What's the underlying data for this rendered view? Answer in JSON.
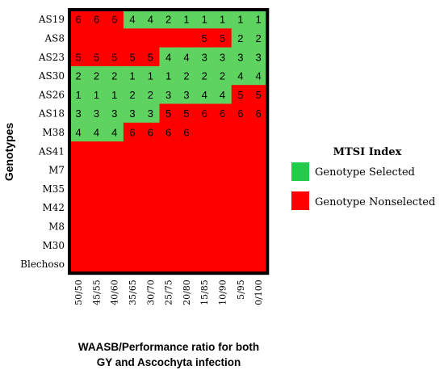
{
  "chart_data": {
    "type": "heatmap",
    "title": "",
    "ylabel": "Genotypes",
    "xlabel_lines": [
      "WAASB/Performance ratio for both",
      "GY and Ascochyta infection"
    ],
    "x": [
      "50/50",
      "45/55",
      "40/60",
      "35/65",
      "30/70",
      "25/75",
      "20/80",
      "15/85",
      "10/90",
      "5/95",
      "0/100"
    ],
    "y": [
      "AS19",
      "AS8",
      "AS23",
      "AS30",
      "AS26",
      "AS18",
      "M38",
      "AS41",
      "M7",
      "M35",
      "M42",
      "M8",
      "M30",
      "Blechoso"
    ],
    "ranks": [
      [
        6,
        6,
        6,
        4,
        4,
        2,
        1,
        1,
        1,
        1,
        1
      ],
      [
        null,
        null,
        null,
        null,
        null,
        null,
        null,
        5,
        5,
        2,
        2
      ],
      [
        5,
        5,
        5,
        5,
        5,
        4,
        4,
        3,
        3,
        3,
        3
      ],
      [
        2,
        2,
        2,
        1,
        1,
        1,
        2,
        2,
        2,
        4,
        4
      ],
      [
        1,
        1,
        1,
        2,
        2,
        3,
        3,
        4,
        4,
        5,
        5
      ],
      [
        3,
        3,
        3,
        3,
        3,
        5,
        5,
        6,
        6,
        6,
        6
      ],
      [
        4,
        4,
        4,
        6,
        6,
        6,
        6,
        null,
        null,
        null,
        null
      ],
      [
        null,
        null,
        null,
        null,
        null,
        null,
        null,
        null,
        null,
        null,
        null
      ],
      [
        null,
        null,
        null,
        null,
        null,
        null,
        null,
        null,
        null,
        null,
        null
      ],
      [
        null,
        null,
        null,
        null,
        null,
        null,
        null,
        null,
        null,
        null,
        null
      ],
      [
        null,
        null,
        null,
        null,
        null,
        null,
        null,
        null,
        null,
        null,
        null
      ],
      [
        null,
        null,
        null,
        null,
        null,
        null,
        null,
        null,
        null,
        null,
        null
      ],
      [
        null,
        null,
        null,
        null,
        null,
        null,
        null,
        null,
        null,
        null,
        null
      ],
      [
        null,
        null,
        null,
        null,
        null,
        null,
        null,
        null,
        null,
        null,
        null
      ]
    ],
    "selected": [
      [
        0,
        0,
        0,
        1,
        1,
        1,
        1,
        1,
        1,
        1,
        1
      ],
      [
        0,
        0,
        0,
        0,
        0,
        0,
        0,
        0,
        0,
        1,
        1
      ],
      [
        0,
        0,
        0,
        0,
        0,
        1,
        1,
        1,
        1,
        1,
        1
      ],
      [
        1,
        1,
        1,
        1,
        1,
        1,
        1,
        1,
        1,
        1,
        1
      ],
      [
        1,
        1,
        1,
        1,
        1,
        1,
        1,
        1,
        1,
        0,
        0
      ],
      [
        1,
        1,
        1,
        1,
        1,
        0,
        0,
        0,
        0,
        0,
        0
      ],
      [
        1,
        1,
        1,
        0,
        0,
        0,
        0,
        0,
        0,
        0,
        0
      ],
      [
        0,
        0,
        0,
        0,
        0,
        0,
        0,
        0,
        0,
        0,
        0
      ],
      [
        0,
        0,
        0,
        0,
        0,
        0,
        0,
        0,
        0,
        0,
        0
      ],
      [
        0,
        0,
        0,
        0,
        0,
        0,
        0,
        0,
        0,
        0,
        0
      ],
      [
        0,
        0,
        0,
        0,
        0,
        0,
        0,
        0,
        0,
        0,
        0
      ],
      [
        0,
        0,
        0,
        0,
        0,
        0,
        0,
        0,
        0,
        0,
        0
      ],
      [
        0,
        0,
        0,
        0,
        0,
        0,
        0,
        0,
        0,
        0,
        0
      ],
      [
        0,
        0,
        0,
        0,
        0,
        0,
        0,
        0,
        0,
        0,
        0
      ]
    ],
    "legend": {
      "title": "MTSI Index",
      "placement": "right",
      "items": [
        {
          "label": "Genotype Selected",
          "color": "#22cc4a"
        },
        {
          "label": "Genotype Nonselected",
          "color": "#ff0000"
        }
      ]
    },
    "colors": {
      "selected": "#5fd35f",
      "nonselected": "#ff0000",
      "border": "#000000"
    },
    "grid": false
  }
}
